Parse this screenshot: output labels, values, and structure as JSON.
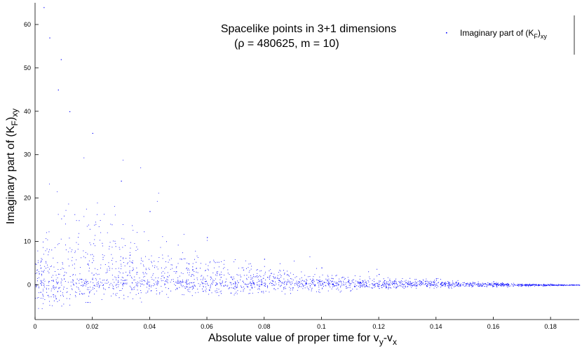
{
  "chart_data": {
    "type": "scatter",
    "title_line1": "Spacelike points in 3+1 dimensions",
    "title_line2_prefix": "(",
    "title_line2_rho": "ρ",
    "title_line2_rest": " = 480625, m = 10)",
    "xlabel_main": "Absolute value of proper time for v",
    "xlabel_sub1": "y",
    "xlabel_dash": "-v",
    "xlabel_sub2": "x",
    "ylabel_main": "Imaginary part of (K",
    "ylabel_sub1": "F",
    "ylabel_close": ")",
    "ylabel_sub2": "xy",
    "legend_main": "Imaginary part of (K",
    "legend_sub1": "F",
    "legend_close": ")",
    "legend_sub2": "xy",
    "legend_position": "top-right",
    "xlim": [
      0,
      0.19
    ],
    "ylim": [
      -8,
      65
    ],
    "xticks": [
      "0",
      "0.02",
      "0.04",
      "0.06",
      "0.08",
      "0.1",
      "0.12",
      "0.14",
      "0.16",
      "0.18"
    ],
    "yticks": [
      "0",
      "10",
      "20",
      "30",
      "40",
      "50",
      "60"
    ],
    "grid": false,
    "series": [
      {
        "color": "#0000ff",
        "description_points": [
          {
            "x": 0.003,
            "y": 64
          },
          {
            "x": 0.005,
            "y": 57
          },
          {
            "x": 0.009,
            "y": 52
          },
          {
            "x": 0.008,
            "y": 45
          },
          {
            "x": 0.012,
            "y": 40
          },
          {
            "x": 0.02,
            "y": 35
          },
          {
            "x": 0.03,
            "y": 24
          },
          {
            "x": 0.04,
            "y": 17
          },
          {
            "x": 0.06,
            "y": 11
          },
          {
            "x": 0.08,
            "y": 6
          },
          {
            "x": 0.1,
            "y": 4
          },
          {
            "x": 0.12,
            "y": 2.5
          },
          {
            "x": 0.14,
            "y": 1.5
          },
          {
            "x": 0.16,
            "y": 0.8
          },
          {
            "x": 0.18,
            "y": 0.2
          },
          {
            "x": 0.19,
            "y": 0
          }
        ],
        "envelope": {
          "x": [
            0.0,
            0.01,
            0.02,
            0.04,
            0.06,
            0.08,
            0.1,
            0.12,
            0.14,
            0.16,
            0.18,
            0.19
          ],
          "upper": [
            10,
            30,
            24,
            17,
            11,
            6,
            4,
            2.5,
            1.5,
            0.8,
            0.3,
            0.1
          ],
          "center": [
            1,
            1.5,
            1.5,
            1.2,
            0.9,
            0.7,
            0.5,
            0.3,
            0.2,
            0.1,
            0.0,
            0.0
          ],
          "lower": [
            -5,
            -4,
            -3,
            -2.5,
            -2,
            -1.7,
            -1.2,
            -0.9,
            -0.6,
            -0.4,
            -0.2,
            0
          ]
        }
      }
    ]
  }
}
